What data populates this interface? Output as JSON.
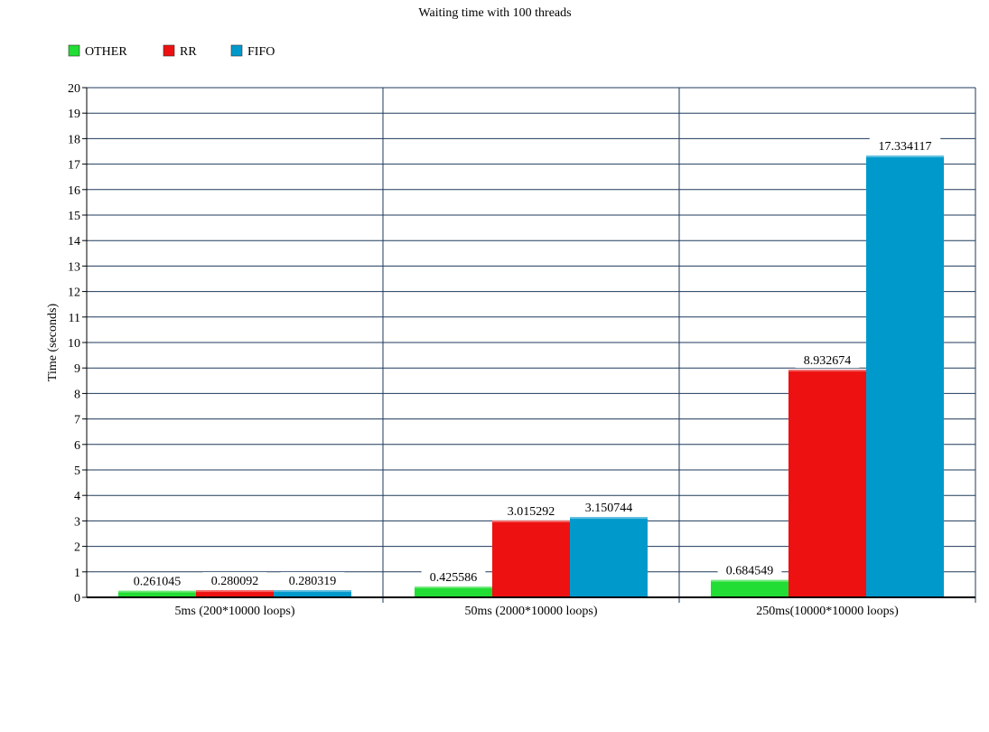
{
  "chart_data": {
    "type": "bar",
    "title": "Waiting time with 100 threads",
    "xlabel": "",
    "ylabel": "Time (seconds)",
    "ylim": [
      0,
      20
    ],
    "yticks": [
      0,
      1,
      2,
      3,
      4,
      5,
      6,
      7,
      8,
      9,
      10,
      11,
      12,
      13,
      14,
      15,
      16,
      17,
      18,
      19,
      20
    ],
    "grid": true,
    "legend_position": "top-left",
    "categories": [
      "5ms (200*10000 loops)",
      "50ms (2000*10000 loops)",
      "250ms(10000*10000 loops)"
    ],
    "series": [
      {
        "name": "OTHER",
        "color": "#22dd33",
        "values": [
          0.261045,
          0.425586,
          0.684549
        ],
        "labels": [
          "0.261045",
          "0.425586",
          "0.684549"
        ]
      },
      {
        "name": "RR",
        "color": "#ee1111",
        "values": [
          0.280092,
          3.015292,
          8.932674
        ],
        "labels": [
          "0.280092",
          "3.015292",
          "8.932674"
        ]
      },
      {
        "name": "FIFO",
        "color": "#0099cc",
        "values": [
          0.280319,
          3.150744,
          17.334117
        ],
        "labels": [
          "0.280319",
          "3.150744",
          "17.334117"
        ]
      }
    ],
    "grid_color": "#1f3a5c"
  }
}
